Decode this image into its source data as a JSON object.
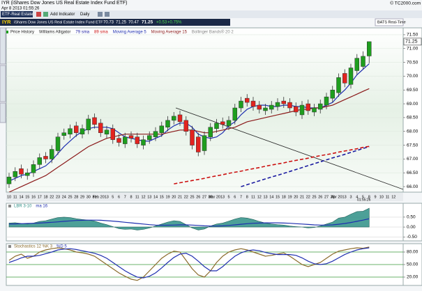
{
  "ui": {
    "window_title": "IYR (iShares Dow Jones US Real Estate Index Fund ETF)",
    "datetime": "Apr 8 2013 01:55:26",
    "copyright": "© TC2000.com",
    "watchlist": "ETF-Real Estate",
    "add_indicator": "Add Indicator",
    "timeframe": "Daily",
    "symbol": "IYR",
    "symbol_name": "iShares Dow Jones US Real Estate Index Fund ETF",
    "quote_open": "70.73",
    "quote_high": "71.25",
    "quote_low": "70.47",
    "quote_last": "71.25",
    "quote_change": "+0.53",
    "quote_change_pct": "+0.75%",
    "feed": "BATS Real-Time",
    "axis_time": "01:55:26"
  },
  "chart_data": [
    {
      "type": "candlestick",
      "indicators": [
        "Price History",
        "Williams Alligator",
        "Bollinger Bands® 20 2"
      ],
      "categories": [
        "10",
        "11",
        "14",
        "15",
        "16",
        "17",
        "18",
        "22",
        "23",
        "24",
        "25",
        "28",
        "29",
        "30",
        "31",
        "Feb 2013",
        null,
        "5",
        "6",
        "7",
        "8",
        "11",
        "12",
        "13",
        "14",
        "15",
        "19",
        "20",
        "21",
        "22",
        "25",
        "26",
        "27",
        "28",
        "Mar 2013",
        null,
        "5",
        "6",
        "7",
        "8",
        "11",
        "12",
        "13",
        "14",
        "15",
        "18",
        "19",
        "20",
        "21",
        "22",
        "25",
        "26",
        "27",
        "28",
        "Apr 2013",
        null,
        "3",
        "4",
        "5",
        "8"
      ],
      "future_dates": [
        "9",
        "10",
        "11",
        "12"
      ],
      "open": [
        66.1,
        66.35,
        66.65,
        66.4,
        66.5,
        66.8,
        67.1,
        67.0,
        67.3,
        67.85,
        67.9,
        68.2,
        67.9,
        68.05,
        68.5,
        68.3,
        67.9,
        68.1,
        67.75,
        67.55,
        67.85,
        67.8,
        67.5,
        67.7,
        67.8,
        67.95,
        68.15,
        68.4,
        68.6,
        68.4,
        68.05,
        67.8,
        67.3,
        67.8,
        68.1,
        68.35,
        68.2,
        68.4,
        68.85,
        69.2,
        69.1,
        68.95,
        68.75,
        68.8,
        68.9,
        69.1,
        69.05,
        68.9,
        68.6,
        69.0,
        68.7,
        68.8,
        68.95,
        69.2,
        69.4,
        70.1,
        69.7,
        70.2,
        70.35,
        70.73
      ],
      "high": [
        66.5,
        66.7,
        66.8,
        66.65,
        66.95,
        67.2,
        67.25,
        67.5,
        67.95,
        68.1,
        68.25,
        68.35,
        68.25,
        68.6,
        68.65,
        68.45,
        68.2,
        68.25,
        67.9,
        67.95,
        68.0,
        67.95,
        67.85,
        68.0,
        68.15,
        68.35,
        68.55,
        68.7,
        68.75,
        68.55,
        68.2,
        67.95,
        68.0,
        68.3,
        68.45,
        68.5,
        68.55,
        69.0,
        69.25,
        69.35,
        69.25,
        69.1,
        69.0,
        69.1,
        69.2,
        69.25,
        69.2,
        69.05,
        69.1,
        69.15,
        69.0,
        69.15,
        69.4,
        69.65,
        70.1,
        70.25,
        70.45,
        70.8,
        70.9,
        71.25
      ],
      "low": [
        65.95,
        66.2,
        66.3,
        66.25,
        66.35,
        66.65,
        66.85,
        66.85,
        67.15,
        67.7,
        67.75,
        67.8,
        67.75,
        67.9,
        68.1,
        67.8,
        67.75,
        67.55,
        67.45,
        67.4,
        67.6,
        67.4,
        67.35,
        67.55,
        67.65,
        67.8,
        68.0,
        68.25,
        68.2,
        67.85,
        67.35,
        67.1,
        67.15,
        67.65,
        67.95,
        68.1,
        68.05,
        68.25,
        68.7,
        68.9,
        68.75,
        68.65,
        68.6,
        68.65,
        68.75,
        68.85,
        68.7,
        68.55,
        68.45,
        68.6,
        68.55,
        68.65,
        68.8,
        69.05,
        69.25,
        69.6,
        69.55,
        70.05,
        70.25,
        70.47
      ],
      "close": [
        66.35,
        66.55,
        66.45,
        66.5,
        66.8,
        67.05,
        67.0,
        67.35,
        67.8,
        67.95,
        68.1,
        67.95,
        68.1,
        68.45,
        68.25,
        67.95,
        68.05,
        67.7,
        67.6,
        67.8,
        67.75,
        67.55,
        67.7,
        67.85,
        68.0,
        68.2,
        68.4,
        68.55,
        68.35,
        68.0,
        67.5,
        67.25,
        67.85,
        68.15,
        68.3,
        68.25,
        68.4,
        68.85,
        69.1,
        69.05,
        68.9,
        68.8,
        68.85,
        68.95,
        69.05,
        69.0,
        68.85,
        68.7,
        68.95,
        68.75,
        68.85,
        69.0,
        69.25,
        69.5,
        69.95,
        69.75,
        70.3,
        70.65,
        70.72,
        71.25
      ],
      "up_color": "#1e9e1e",
      "down_color": "#e3231f",
      "series": [
        {
          "name": "Moving Average 5",
          "color": "#1f2fb0",
          "values": [
            66.2,
            66.3,
            66.4,
            66.45,
            66.55,
            66.65,
            66.75,
            66.95,
            67.2,
            67.45,
            67.65,
            67.85,
            68.0,
            68.1,
            68.15,
            68.15,
            68.15,
            68.1,
            67.95,
            67.8,
            67.75,
            67.7,
            67.65,
            67.65,
            67.75,
            67.85,
            68.05,
            68.2,
            68.3,
            68.3,
            68.15,
            67.9,
            67.8,
            67.75,
            67.8,
            67.95,
            68.2,
            68.35,
            68.6,
            68.8,
            68.9,
            68.95,
            68.95,
            68.9,
            68.9,
            68.95,
            68.95,
            68.9,
            68.9,
            68.85,
            68.85,
            68.85,
            68.95,
            69.05,
            69.3,
            69.5,
            69.75,
            70.05,
            70.25,
            70.45
          ]
        },
        {
          "name": "Moving Average 15",
          "color": "#8b1a1a",
          "values": [
            65.8,
            65.9,
            66.0,
            66.1,
            66.2,
            66.3,
            66.4,
            66.55,
            66.7,
            66.85,
            67.0,
            67.15,
            67.3,
            67.45,
            67.55,
            67.65,
            67.75,
            67.8,
            67.85,
            67.9,
            67.9,
            67.9,
            67.9,
            67.9,
            67.9,
            67.9,
            67.95,
            68.0,
            68.05,
            68.05,
            68.05,
            68.0,
            67.95,
            67.95,
            68.0,
            68.05,
            68.1,
            68.15,
            68.25,
            68.35,
            68.4,
            68.45,
            68.5,
            68.55,
            68.6,
            68.65,
            68.7,
            68.75,
            68.8,
            68.8,
            68.85,
            68.85,
            68.9,
            68.95,
            69.05,
            69.15,
            69.25,
            69.35,
            69.45,
            69.55
          ]
        },
        {
          "name": "79 sma",
          "color": "#1a1aa0",
          "dashed": true,
          "values": [
            null,
            null,
            null,
            null,
            null,
            null,
            null,
            null,
            null,
            null,
            null,
            null,
            null,
            null,
            null,
            null,
            null,
            null,
            null,
            null,
            null,
            null,
            null,
            null,
            null,
            null,
            null,
            null,
            null,
            null,
            null,
            null,
            null,
            null,
            null,
            null,
            null,
            null,
            66.0,
            66.07,
            66.14,
            66.21,
            66.28,
            66.35,
            66.41,
            66.48,
            66.55,
            66.62,
            66.69,
            66.76,
            66.83,
            66.9,
            66.97,
            67.04,
            67.1,
            67.17,
            67.24,
            67.31,
            67.38,
            67.45
          ]
        },
        {
          "name": "89 sma",
          "color": "#cc1010",
          "dashed": true,
          "values": [
            null,
            null,
            null,
            null,
            null,
            null,
            null,
            null,
            null,
            null,
            null,
            null,
            null,
            null,
            null,
            null,
            null,
            null,
            null,
            null,
            null,
            null,
            null,
            null,
            null,
            null,
            null,
            66.1,
            66.14,
            66.18,
            66.22,
            66.26,
            66.3,
            66.35,
            66.39,
            66.43,
            66.48,
            66.52,
            66.56,
            66.61,
            66.65,
            66.69,
            66.74,
            66.78,
            66.82,
            66.86,
            66.91,
            66.95,
            66.99,
            67.03,
            67.08,
            67.12,
            67.16,
            67.2,
            67.25,
            67.29,
            67.33,
            67.37,
            67.42,
            67.46
          ]
        }
      ],
      "ylim": [
        65.8,
        71.75
      ],
      "yticks": [
        {
          "value": 66,
          "label": "66.00"
        },
        {
          "value": 66.5,
          "label": "66.50"
        },
        {
          "value": 67,
          "label": "67.00"
        },
        {
          "value": 67.5,
          "label": "67.50"
        },
        {
          "value": 68,
          "label": "68.00"
        },
        {
          "value": 68.5,
          "label": "68.50"
        },
        {
          "value": 69,
          "label": "69.00"
        },
        {
          "value": 69.5,
          "label": "69.50"
        },
        {
          "value": 70,
          "label": "70.00"
        },
        {
          "value": 70.5,
          "label": "70.50"
        },
        {
          "value": 71,
          "label": "71.00"
        },
        {
          "value": 71.5,
          "label": "71.50"
        }
      ],
      "grid": true,
      "grid_color": "#dfe8df"
    },
    {
      "type": "oscillator",
      "series": [
        {
          "name": "LBR 3-10",
          "color": "#2e8f86",
          "style": "area",
          "values": [
            0.2,
            0.22,
            0.18,
            0.15,
            0.2,
            0.28,
            0.32,
            0.4,
            0.48,
            0.5,
            0.48,
            0.42,
            0.38,
            0.35,
            0.3,
            0.2,
            0.12,
            0.02,
            -0.08,
            -0.12,
            -0.1,
            -0.15,
            -0.12,
            -0.05,
            0.05,
            0.15,
            0.25,
            0.32,
            0.28,
            0.12,
            -0.05,
            -0.15,
            -0.1,
            0.05,
            0.15,
            0.2,
            0.3,
            0.4,
            0.48,
            0.45,
            0.38,
            0.28,
            0.2,
            0.15,
            0.12,
            0.1,
            0.05,
            0.02,
            0.0,
            -0.05,
            -0.02,
            0.05,
            0.15,
            0.25,
            0.45,
            0.5,
            0.65,
            0.78,
            0.8,
            0.95
          ]
        },
        {
          "name": "ma 16",
          "color": "#1f2fb0",
          "style": "line",
          "values": [
            0.15,
            0.16,
            0.17,
            0.18,
            0.19,
            0.2,
            0.22,
            0.24,
            0.26,
            0.29,
            0.31,
            0.33,
            0.34,
            0.35,
            0.35,
            0.34,
            0.32,
            0.3,
            0.27,
            0.24,
            0.21,
            0.18,
            0.15,
            0.12,
            0.1,
            0.09,
            0.09,
            0.1,
            0.11,
            0.11,
            0.1,
            0.08,
            0.06,
            0.05,
            0.05,
            0.06,
            0.08,
            0.11,
            0.14,
            0.17,
            0.19,
            0.2,
            0.21,
            0.21,
            0.21,
            0.2,
            0.19,
            0.17,
            0.15,
            0.13,
            0.11,
            0.1,
            0.1,
            0.11,
            0.14,
            0.18,
            0.23,
            0.29,
            0.35,
            0.42
          ]
        }
      ],
      "ylim": [
        -0.7,
        1.2
      ],
      "yticks": [
        {
          "value": 0.5,
          "label": "0.50"
        },
        {
          "value": 0,
          "label": "0.00"
        },
        {
          "value": -0.5,
          "label": "-0.50"
        }
      ],
      "grid": true,
      "grid_color": "#d6d6d6"
    },
    {
      "type": "oscillator",
      "series": [
        {
          "name": "Stochastics 12 %K 3",
          "color": "#8a6a2a",
          "style": "line",
          "values": [
            60,
            70,
            75,
            65,
            70,
            80,
            85,
            88,
            90,
            88,
            85,
            80,
            78,
            75,
            70,
            60,
            50,
            40,
            30,
            22,
            15,
            12,
            20,
            35,
            50,
            65,
            75,
            82,
            80,
            60,
            40,
            25,
            20,
            35,
            55,
            70,
            80,
            85,
            88,
            85,
            80,
            75,
            70,
            72,
            75,
            78,
            70,
            60,
            50,
            45,
            50,
            55,
            65,
            75,
            82,
            85,
            88,
            90,
            89,
            92
          ]
        },
        {
          "name": "%D 5",
          "color": "#1f2fb0",
          "style": "line",
          "values": [
            55,
            60,
            66,
            70,
            70,
            72,
            76,
            80,
            85,
            87,
            88,
            86,
            83,
            80,
            77,
            72,
            65,
            55,
            45,
            35,
            27,
            20,
            18,
            22,
            30,
            42,
            55,
            67,
            75,
            77,
            70,
            58,
            45,
            35,
            35,
            45,
            58,
            70,
            78,
            83,
            85,
            83,
            79,
            76,
            74,
            74,
            74,
            72,
            66,
            58,
            52,
            50,
            52,
            58,
            66,
            74,
            80,
            85,
            88,
            90
          ]
        }
      ],
      "ylim": [
        0,
        100
      ],
      "yticks": [
        {
          "value": 80,
          "label": "80.00"
        },
        {
          "value": 50,
          "label": "50.00"
        },
        {
          "value": 20,
          "label": "20.00"
        }
      ],
      "grid": true,
      "grid_color": "#3a9a3a"
    }
  ]
}
